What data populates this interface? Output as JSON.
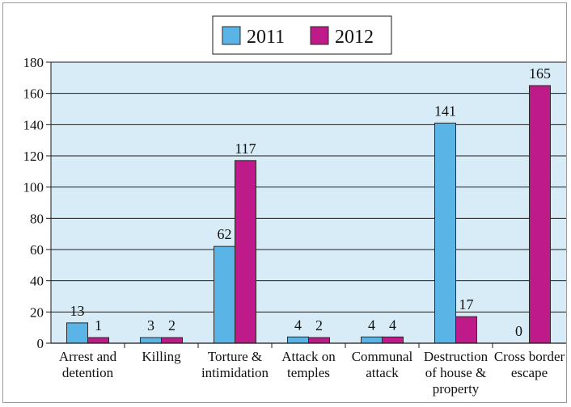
{
  "chart_data": {
    "type": "bar",
    "categories": [
      [
        "Arrest and",
        "detention"
      ],
      [
        "Killing"
      ],
      [
        "Torture &",
        "intimidation"
      ],
      [
        "Attack on",
        "temples"
      ],
      [
        "Communal",
        "attack"
      ],
      [
        "Destruction",
        "of house &",
        "property"
      ],
      [
        "Cross border",
        "escape"
      ]
    ],
    "series": [
      {
        "name": "2011",
        "color": "#5ab4e5",
        "values": [
          13,
          3,
          62,
          4,
          4,
          141,
          0
        ]
      },
      {
        "name": "2012",
        "color": "#bf1a8a",
        "values": [
          1,
          2,
          117,
          2,
          4,
          17,
          165
        ]
      }
    ],
    "data_labels": {
      "2011": [
        "13",
        "3",
        "62",
        "4",
        "4",
        "141",
        "0"
      ],
      "2012": [
        "1",
        "2",
        "117",
        "2",
        "4",
        "17",
        "165"
      ]
    },
    "ylim": [
      0,
      180
    ],
    "yticks": [
      0,
      20,
      40,
      60,
      80,
      100,
      120,
      140,
      160,
      180
    ],
    "grid": true,
    "legend_position": "top-center",
    "plot_background": "#d8ecf8"
  }
}
